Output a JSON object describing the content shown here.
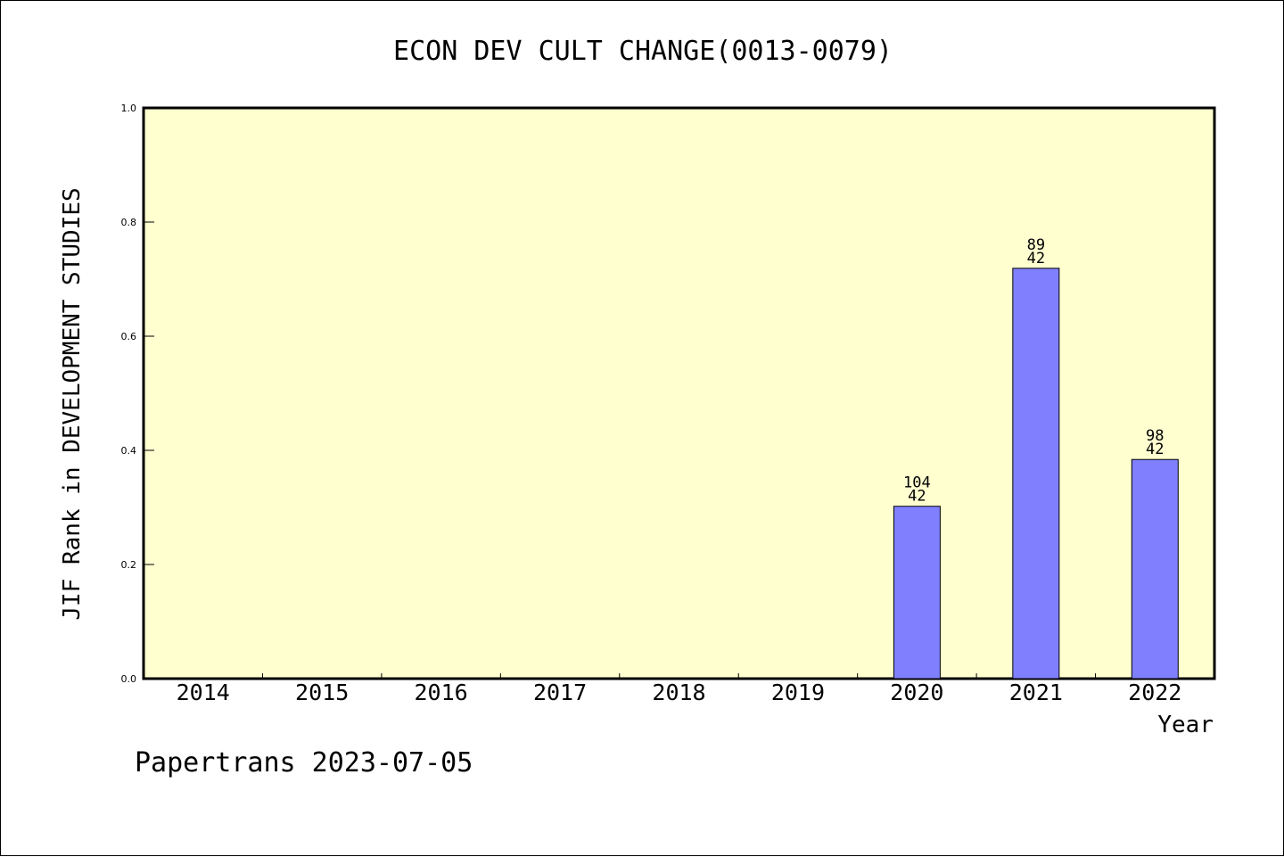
{
  "chart_data": {
    "type": "bar",
    "title": "ECON DEV CULT CHANGE(0013-0079)",
    "xlabel": "Year",
    "ylabel": "JIF Rank in DEVELOPMENT STUDIES",
    "footer": "Papertrans 2023-07-05",
    "categories": [
      "2014",
      "2015",
      "2016",
      "2017",
      "2018",
      "2019",
      "2020",
      "2021",
      "2022"
    ],
    "values": [
      null,
      null,
      null,
      null,
      null,
      null,
      0.302,
      0.719,
      0.384
    ],
    "labels_top": [
      "",
      "",
      "",
      "",
      "",
      "",
      "104",
      "89",
      "98"
    ],
    "labels_bottom": [
      "",
      "",
      "",
      "",
      "",
      "",
      "42",
      "42",
      "42"
    ],
    "ylim": [
      0,
      1.0
    ],
    "yticks": [
      "0.0",
      "0.2",
      "0.4",
      "0.6",
      "0.8",
      "1.0"
    ],
    "grid": false,
    "colors": {
      "plot_background": "#ffffd0",
      "bar_fill": "#8080ff",
      "bar_stroke": "#000000"
    }
  }
}
